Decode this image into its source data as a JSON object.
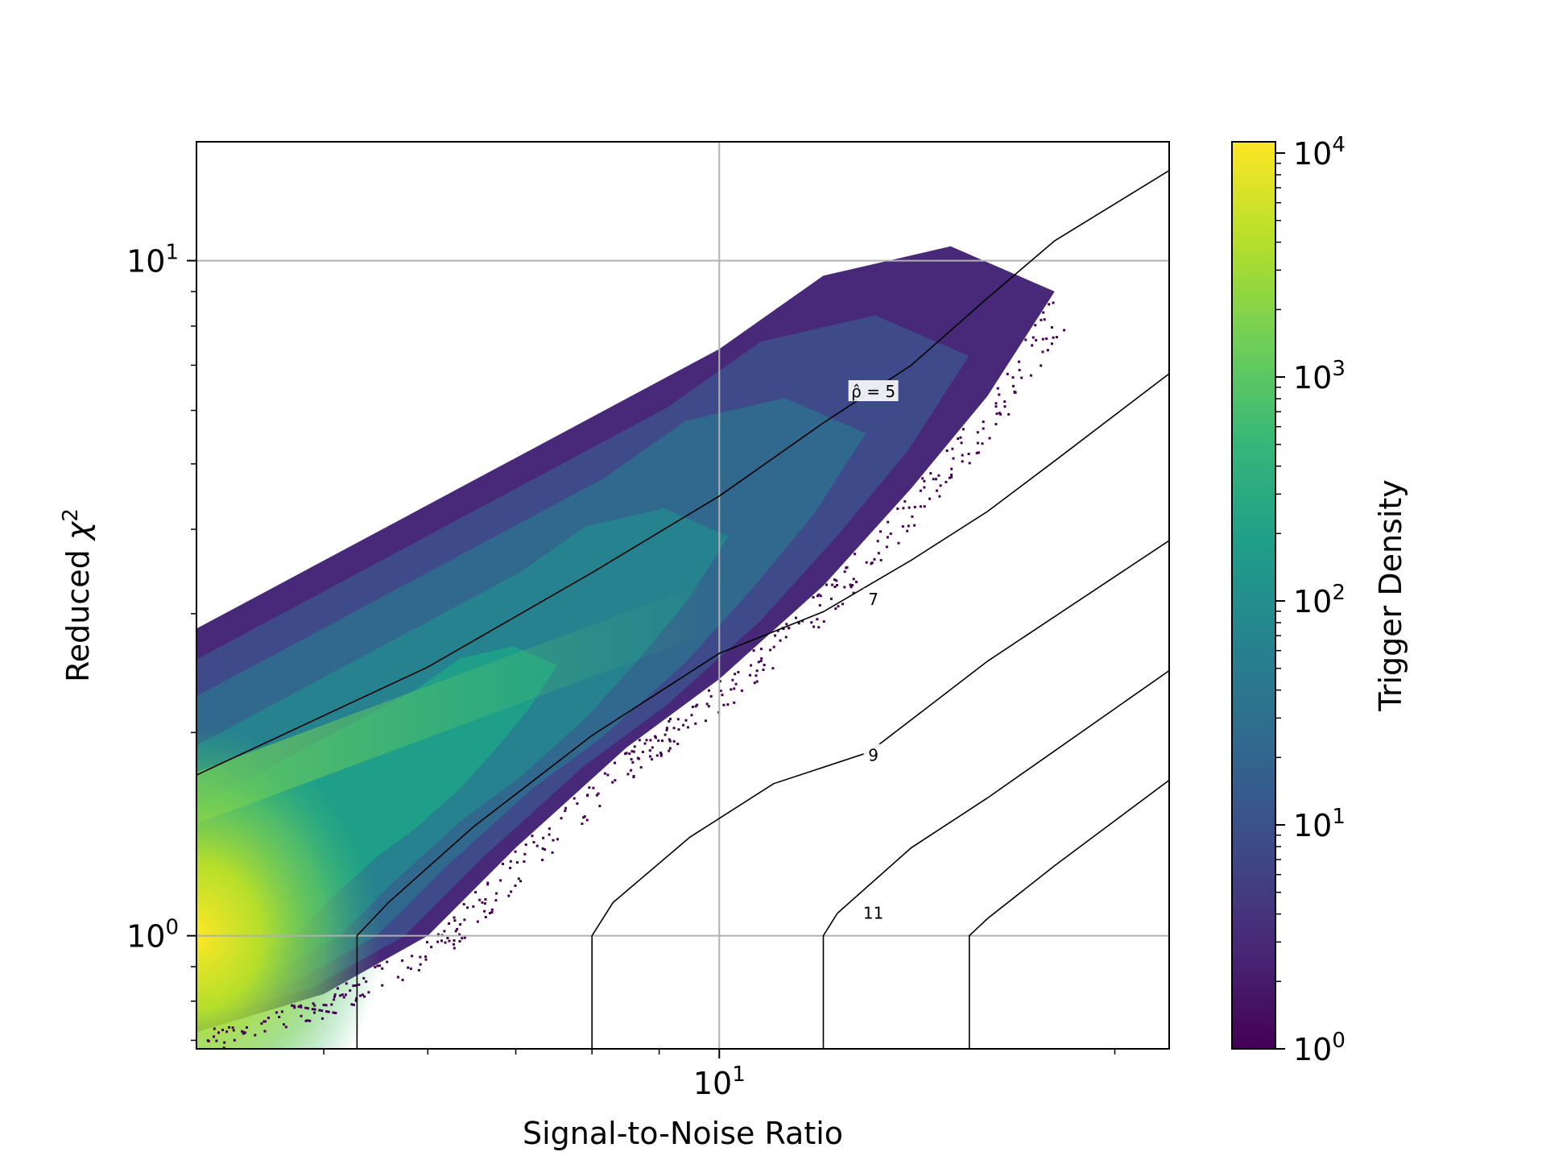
{
  "chart_data": {
    "type": "heatmap",
    "title": "",
    "xlabel": "Signal-to-Noise Ratio",
    "ylabel_text": "Reduced ",
    "ylabel_symbol": "χ",
    "ylabel_exponent": "2",
    "x_scale": "log",
    "y_scale": "log",
    "xlim": [
      4.0,
      22.0
    ],
    "ylim": [
      0.68,
      15.0
    ],
    "grid": true,
    "x_major_ticks": [
      {
        "value": 10,
        "label_base": "10",
        "label_exp": "1"
      }
    ],
    "x_minor_ticks": [
      5,
      6,
      7,
      8,
      9,
      20
    ],
    "y_major_ticks": [
      {
        "value": 1,
        "label_base": "10",
        "label_exp": "0"
      },
      {
        "value": 10,
        "label_base": "10",
        "label_exp": "1"
      }
    ],
    "y_minor_ticks": [
      0.7,
      0.8,
      0.9,
      2,
      3,
      4,
      5,
      6,
      7,
      8,
      9
    ],
    "density_region": {
      "upper_edge": [
        [
          4.0,
          2.85
        ],
        [
          10.0,
          7.4
        ],
        [
          12.0,
          9.5
        ],
        [
          15.0,
          10.5
        ]
      ],
      "lower_edge": [
        [
          4.0,
          0.72
        ],
        [
          5.0,
          0.82
        ],
        [
          6.0,
          1.0
        ],
        [
          7.0,
          1.35
        ],
        [
          8.5,
          1.9
        ],
        [
          10.0,
          2.4
        ],
        [
          12.0,
          3.3
        ],
        [
          14.0,
          4.6
        ],
        [
          16.0,
          6.3
        ],
        [
          18.0,
          9.0
        ]
      ],
      "peak": [
        4.0,
        1.0
      ],
      "ridge": [
        [
          4.0,
          1.6
        ],
        [
          7.0,
          2.4
        ],
        [
          10.0,
          3.1
        ]
      ]
    },
    "contours": [
      {
        "label": "ρ̂ = 5",
        "label_at": [
          13.1,
          6.4
        ],
        "points": [
          [
            4.0,
            1.73
          ],
          [
            6.0,
            2.5
          ],
          [
            8.0,
            3.45
          ],
          [
            10.0,
            4.48
          ],
          [
            12.0,
            5.75
          ],
          [
            14.0,
            7.0
          ],
          [
            16.0,
            8.8
          ],
          [
            18.0,
            10.7
          ],
          [
            22.0,
            13.6
          ]
        ]
      },
      {
        "label": "7",
        "label_at": [
          13.1,
          3.15
        ],
        "points": [
          [
            5.3,
            1.0
          ],
          [
            5.6,
            1.12
          ],
          [
            6.5,
            1.45
          ],
          [
            8.0,
            1.98
          ],
          [
            10.0,
            2.62
          ],
          [
            12.0,
            3.02
          ],
          [
            14.0,
            3.6
          ],
          [
            16.0,
            4.25
          ],
          [
            18.0,
            5.05
          ],
          [
            22.0,
            6.8
          ]
        ]
      },
      {
        "label": "9",
        "label_at": [
          13.1,
          1.85
        ],
        "points": [
          [
            8.0,
            1.0
          ],
          [
            8.3,
            1.12
          ],
          [
            9.5,
            1.4
          ],
          [
            11.0,
            1.68
          ],
          [
            13.0,
            1.87
          ],
          [
            16.0,
            2.55
          ],
          [
            22.0,
            3.85
          ]
        ]
      },
      {
        "label": "11",
        "label_at": [
          13.1,
          1.08
        ],
        "points": [
          [
            12.0,
            1.0
          ],
          [
            12.3,
            1.08
          ],
          [
            14.0,
            1.35
          ],
          [
            16.0,
            1.6
          ],
          [
            22.0,
            2.47
          ]
        ]
      },
      {
        "label": "",
        "label_at": null,
        "points": [
          [
            15.5,
            1.0
          ],
          [
            16.0,
            1.06
          ],
          [
            18.0,
            1.27
          ],
          [
            22.0,
            1.7
          ]
        ]
      }
    ],
    "colorbar": {
      "label": "Trigger Density",
      "scale": "log",
      "range": [
        1,
        10000
      ],
      "colormap": [
        "#440154",
        "#482878",
        "#3e4a89",
        "#31688e",
        "#26828e",
        "#1f9e89",
        "#35b779",
        "#6ece58",
        "#b5de2b",
        "#fde725"
      ],
      "ticks": [
        {
          "value": 1,
          "label_base": "10",
          "label_exp": "0"
        },
        {
          "value": 10,
          "label_base": "10",
          "label_exp": "1"
        },
        {
          "value": 100,
          "label_base": "10",
          "label_exp": "2"
        },
        {
          "value": 1000,
          "label_base": "10",
          "label_exp": "3"
        },
        {
          "value": 10000,
          "label_base": "10",
          "label_exp": "4"
        }
      ]
    }
  }
}
